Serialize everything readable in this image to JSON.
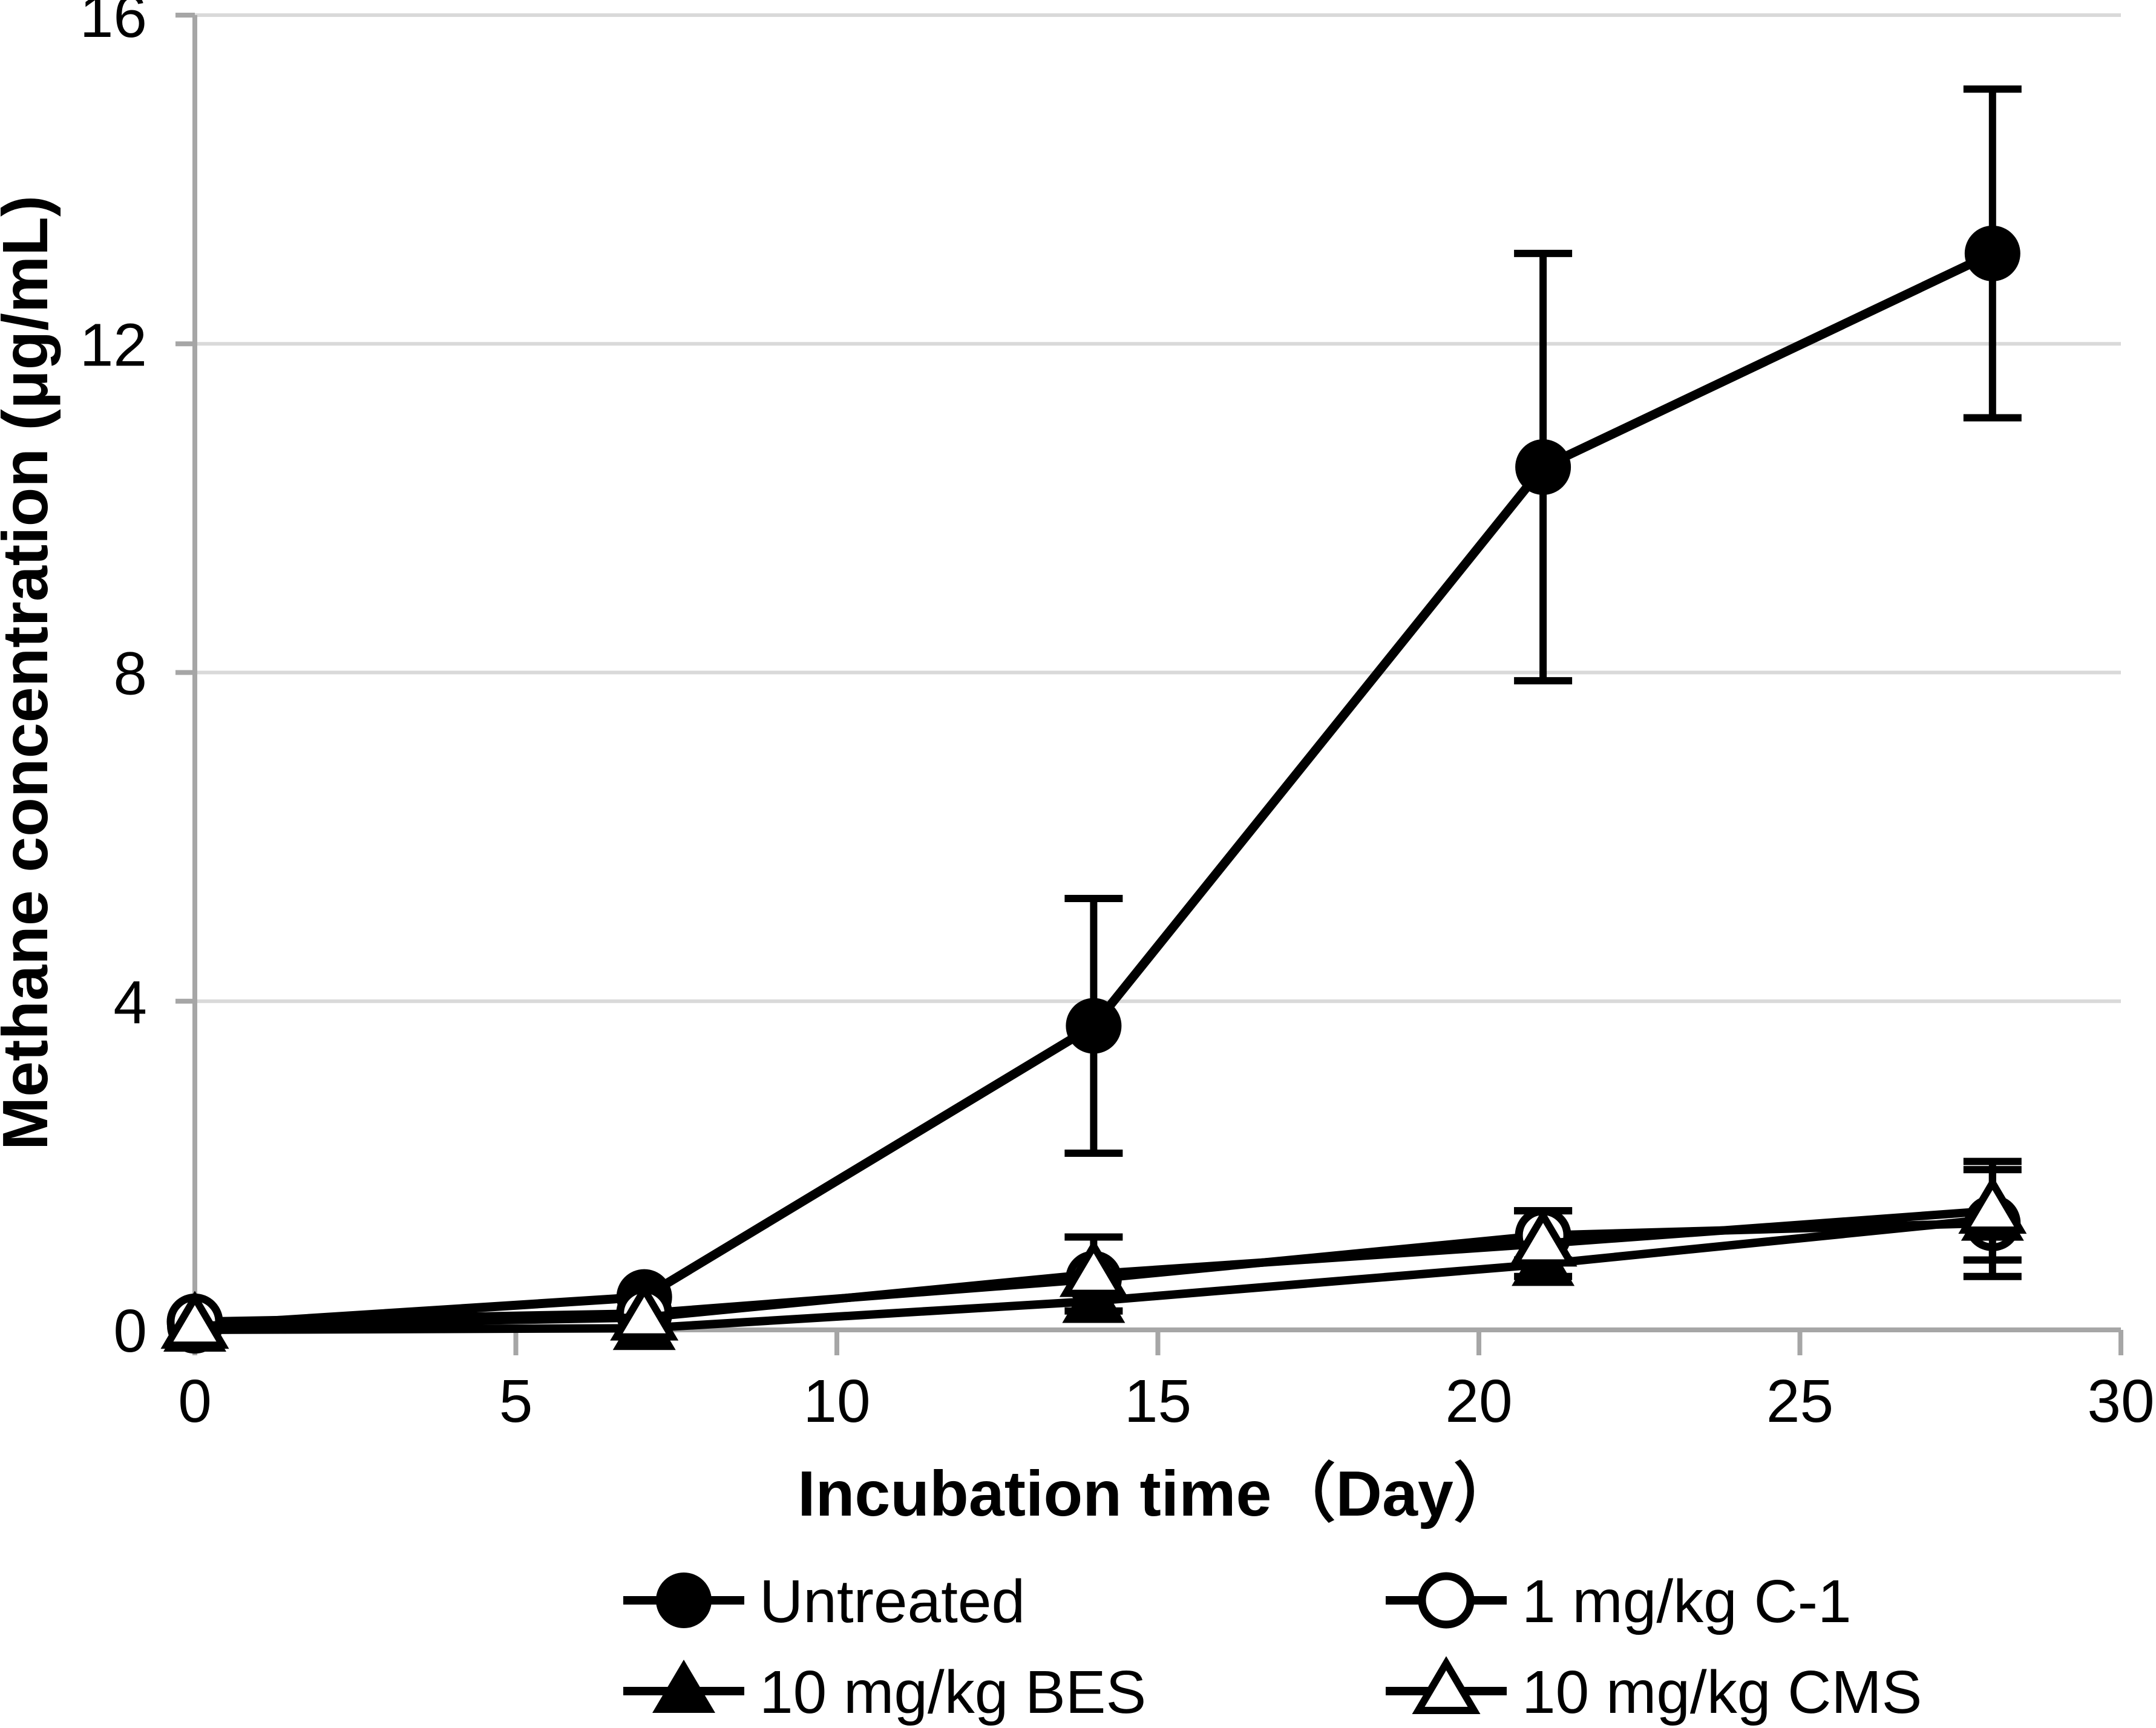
{
  "figure": {
    "background": "#FFFFFF"
  },
  "chart_data": {
    "type": "line",
    "title": "",
    "xlabel": "Incubation time（Day）",
    "ylabel": "Methane concentration (μg/mL)",
    "x": [
      0,
      7,
      14,
      21,
      28
    ],
    "xlim": [
      0,
      30
    ],
    "ylim": [
      0,
      16
    ],
    "xticks": [
      0,
      5,
      10,
      15,
      20,
      25,
      30
    ],
    "yticks": [
      0,
      4,
      8,
      12,
      16
    ],
    "grid": "horizontal-only",
    "legend_position": "bottom-two-columns",
    "series": [
      {
        "name": "Untreated",
        "marker": "filled-circle",
        "values": [
          0.05,
          0.4,
          3.7,
          10.5,
          13.1
        ],
        "errors": [
          0,
          0,
          1.55,
          2.6,
          2.0
        ]
      },
      {
        "name": "1 mg/kg C-1",
        "marker": "open-circle",
        "values": [
          0.1,
          0.2,
          0.62,
          1.15,
          1.3
        ],
        "errors": [
          0,
          0,
          0,
          0.3,
          0.65
        ]
      },
      {
        "name": "10 mg/kg BES",
        "marker": "filled-triangle",
        "values": [
          0,
          0.02,
          0.35,
          0.8,
          1.35
        ],
        "errors": [
          0,
          0,
          0,
          0,
          0
        ]
      },
      {
        "name": "10 mg/kg CMS",
        "marker": "open-triangle",
        "values": [
          0.05,
          0.15,
          0.68,
          1.05,
          1.45
        ],
        "errors": [
          0,
          0,
          0.45,
          0.4,
          0.6
        ]
      }
    ],
    "colors": {
      "series": "#000000",
      "grid": "#D9D9D9",
      "axis": "#A6A6A6",
      "text": "#000000"
    }
  }
}
